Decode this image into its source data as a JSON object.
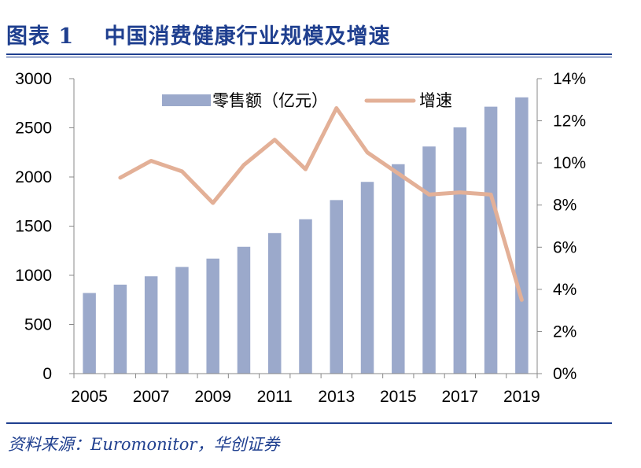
{
  "header": {
    "figure_label": "图表",
    "figure_number": "1",
    "title": "中国消费健康行业规模及增速"
  },
  "footer": {
    "source": "资料来源：Euromonitor，华创证券"
  },
  "colors": {
    "bar": "#9ba9cb",
    "line": "#e3b097",
    "accent": "#1f3f8f"
  },
  "chart_data": {
    "type": "bar",
    "x": [
      2005,
      2006,
      2007,
      2008,
      2009,
      2010,
      2011,
      2012,
      2013,
      2014,
      2015,
      2016,
      2017,
      2018,
      2019
    ],
    "x_tick_labels": [
      "2005",
      "2007",
      "2009",
      "2011",
      "2013",
      "2015",
      "2017",
      "2019"
    ],
    "series": [
      {
        "name": "零售额（亿元）",
        "type": "bar",
        "axis": "left",
        "values": [
          820,
          905,
          990,
          1085,
          1170,
          1290,
          1430,
          1570,
          1765,
          1950,
          2130,
          2310,
          2505,
          2715,
          2810
        ]
      },
      {
        "name": "增速",
        "type": "line",
        "axis": "right",
        "values": [
          null,
          9.3,
          10.1,
          9.6,
          8.1,
          9.9,
          11.1,
          9.7,
          12.6,
          10.5,
          9.5,
          8.5,
          8.6,
          8.5,
          3.5
        ]
      }
    ],
    "y_left": {
      "min": 0,
      "max": 3000,
      "ticks": [
        "0",
        "500",
        "1000",
        "1500",
        "2000",
        "2500",
        "3000"
      ]
    },
    "y_right": {
      "min": 0,
      "max": 14,
      "ticks": [
        "0%",
        "2%",
        "4%",
        "6%",
        "8%",
        "10%",
        "12%",
        "14%"
      ]
    },
    "legend": {
      "position": "top-center",
      "entries": [
        "零售额（亿元）",
        "增速"
      ]
    },
    "grid": false
  }
}
